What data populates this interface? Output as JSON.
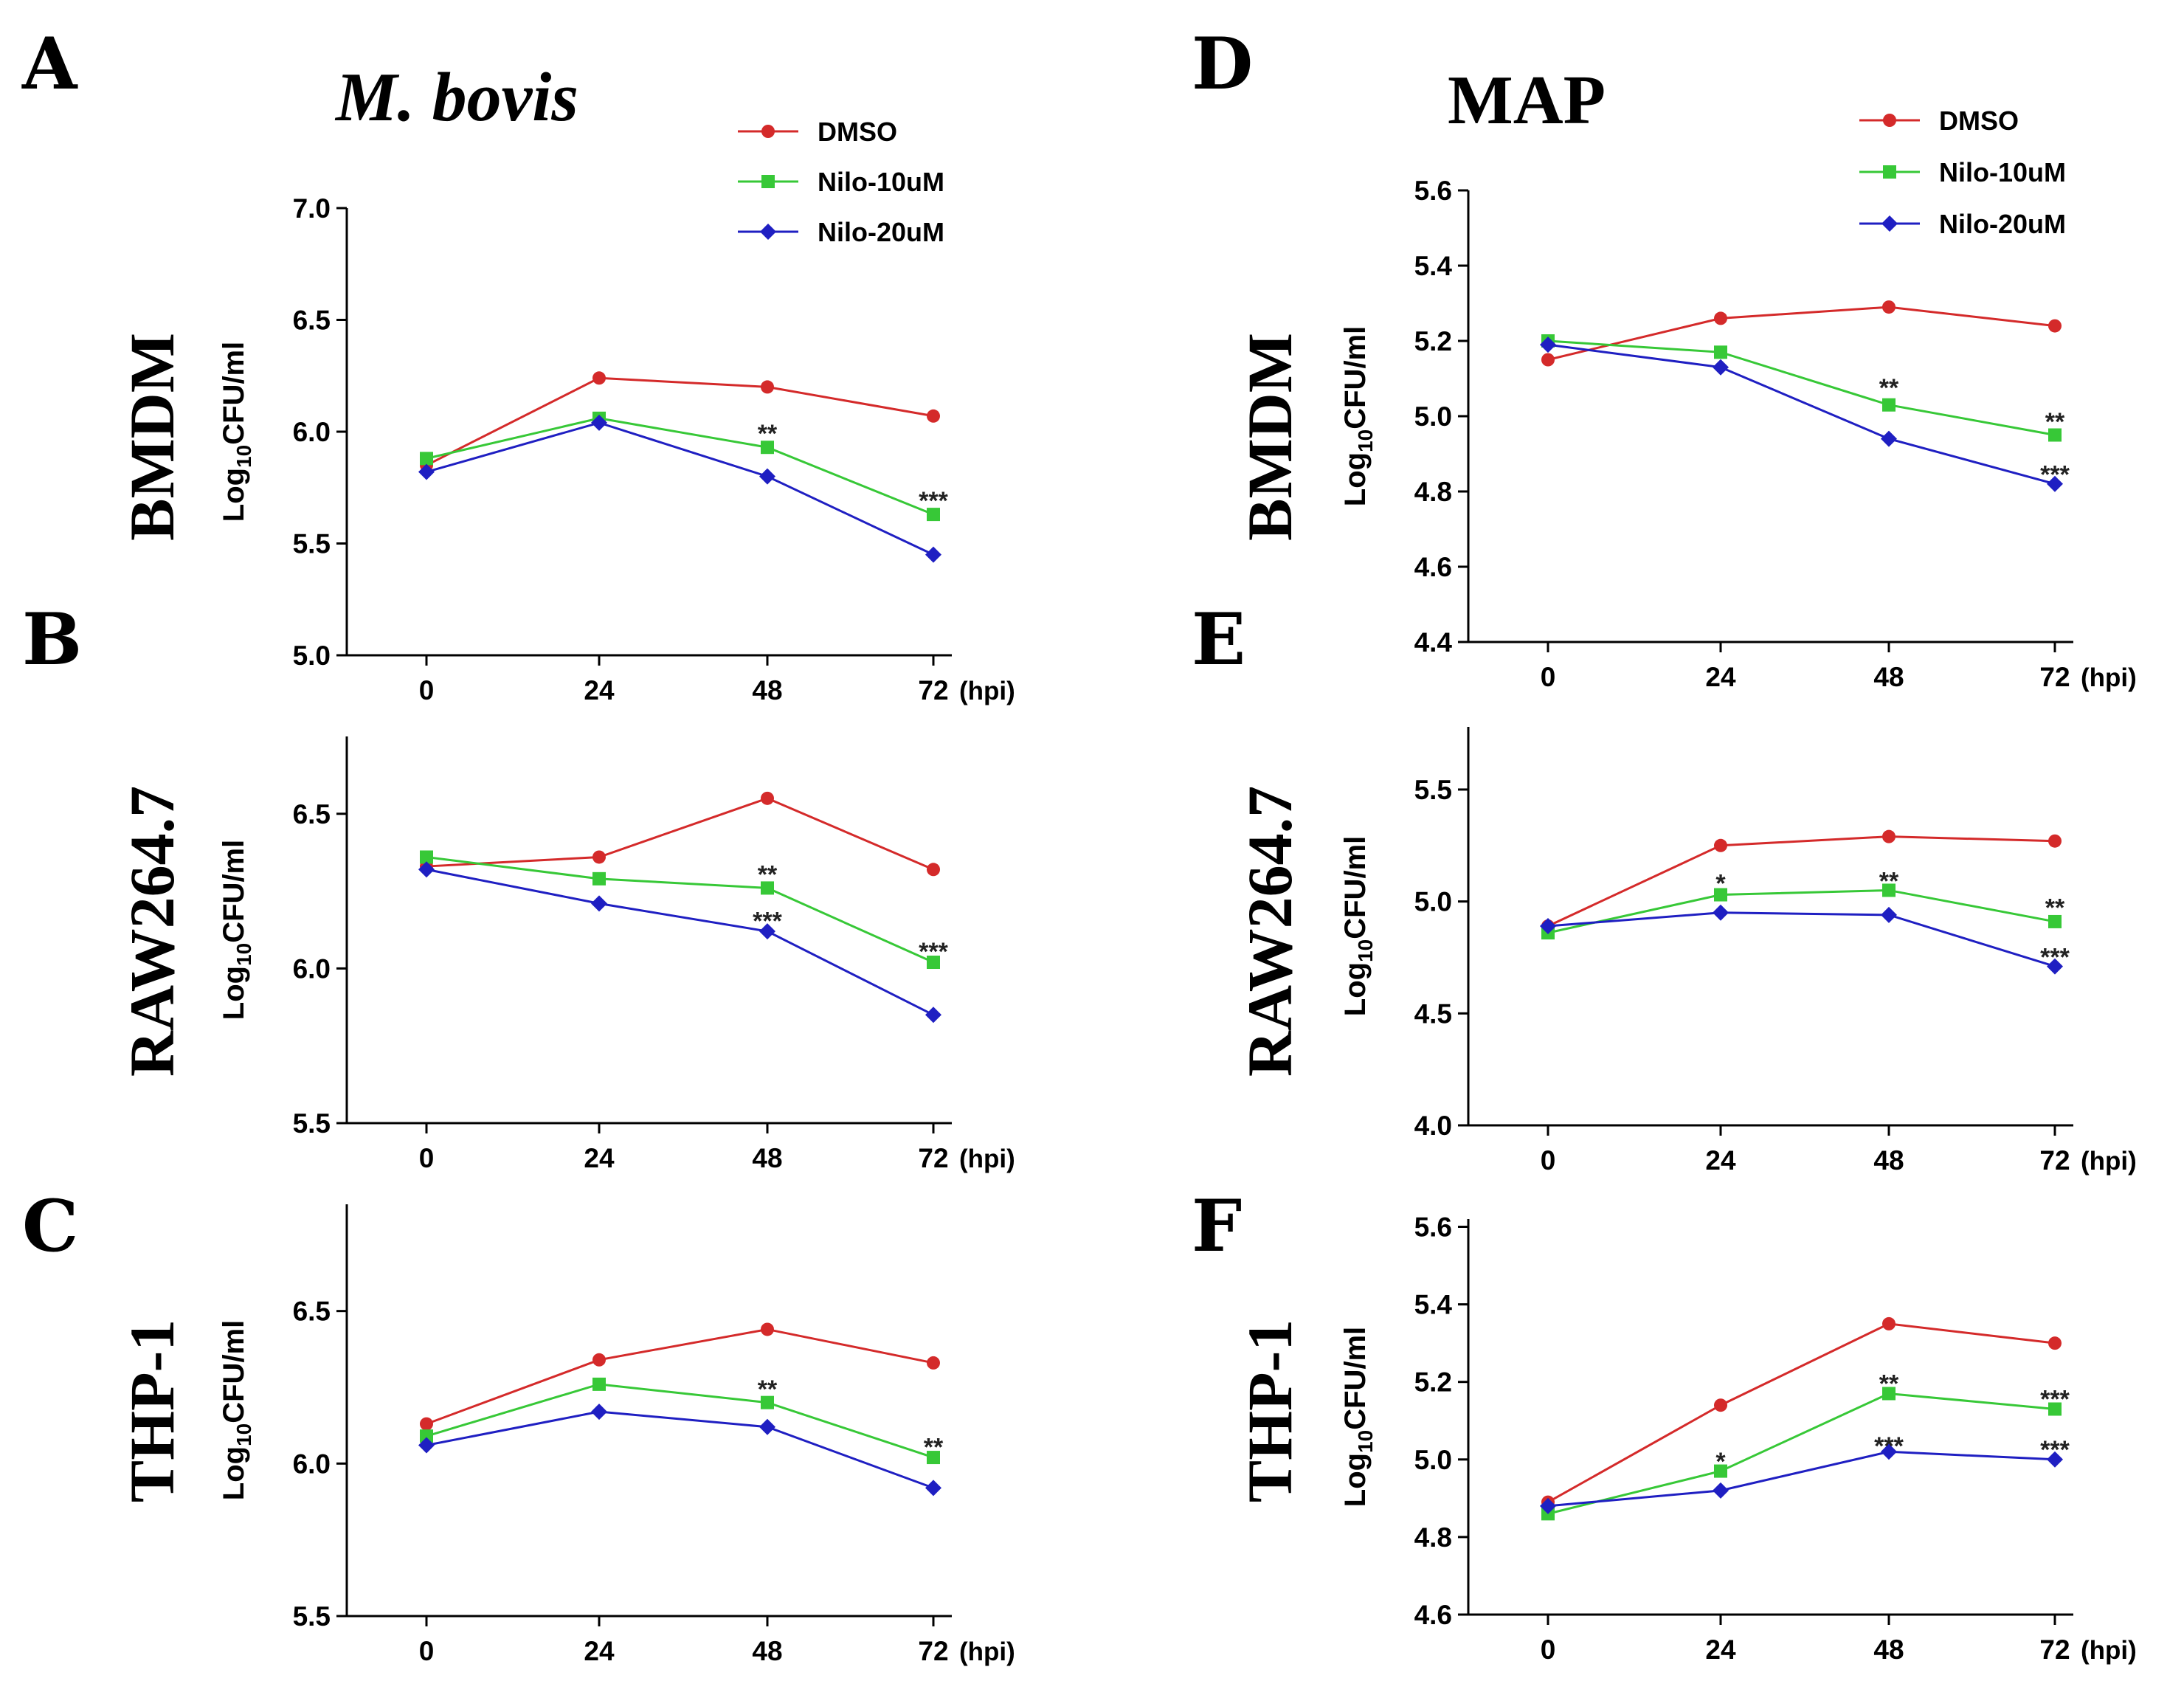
{
  "colors": {
    "DMSO": "#d42a2a",
    "Nilo-10uM": "#37c837",
    "Nilo-20uM": "#1f1fc2"
  },
  "headers": {
    "left": "M. bovis",
    "right": "MAP"
  },
  "legend": [
    {
      "name": "DMSO",
      "marker": "circle"
    },
    {
      "name": "Nilo-10uM",
      "marker": "square"
    },
    {
      "name": "Nilo-20uM",
      "marker": "diamond"
    }
  ],
  "chart_data": [
    {
      "panel": "A",
      "cell": "BMDM",
      "organism": "M. bovis",
      "type": "line",
      "xlabel": "(hpi)",
      "ylabel_main": "Log",
      "ylabel_sub": "10",
      "ylabel_tail": "CFU/ml",
      "x": [
        "0",
        "24",
        "48",
        "72"
      ],
      "ylim": [
        5.0,
        7.0
      ],
      "yticks": [
        "5.0",
        "5.5",
        "6.0",
        "6.5",
        "7.0"
      ],
      "series": [
        {
          "name": "DMSO",
          "values": [
            5.85,
            6.24,
            6.2,
            6.07
          ]
        },
        {
          "name": "Nilo-10uM",
          "values": [
            5.88,
            6.06,
            5.93,
            5.63
          ]
        },
        {
          "name": "Nilo-20uM",
          "values": [
            5.82,
            6.04,
            5.8,
            5.45
          ]
        }
      ],
      "annotations": [
        {
          "x": "48",
          "y": 6.0,
          "text": "**"
        },
        {
          "x": "72",
          "y": 5.7,
          "text": "***"
        }
      ]
    },
    {
      "panel": "B",
      "cell": "RAW264.7",
      "organism": "M. bovis",
      "type": "line",
      "xlabel": "(hpi)",
      "ylabel_main": "Log",
      "ylabel_sub": "10",
      "ylabel_tail": "CFU/ml",
      "x": [
        "0",
        "24",
        "48",
        "72"
      ],
      "ylim": [
        5.5,
        6.75
      ],
      "yticks": [
        "5.5",
        "6.0",
        "6.5"
      ],
      "series": [
        {
          "name": "DMSO",
          "values": [
            6.33,
            6.36,
            6.55,
            6.32
          ]
        },
        {
          "name": "Nilo-10uM",
          "values": [
            6.36,
            6.29,
            6.26,
            6.02
          ]
        },
        {
          "name": "Nilo-20uM",
          "values": [
            6.32,
            6.21,
            6.12,
            5.85
          ]
        }
      ],
      "annotations": [
        {
          "x": "48",
          "y": 6.31,
          "text": "**"
        },
        {
          "x": "48",
          "y": 6.16,
          "text": "***"
        },
        {
          "x": "72",
          "y": 6.06,
          "text": "***"
        }
      ]
    },
    {
      "panel": "C",
      "cell": "THP-1",
      "organism": "M. bovis",
      "type": "line",
      "xlabel": "(hpi)",
      "ylabel_main": "Log",
      "ylabel_sub": "10",
      "ylabel_tail": "CFU/ml",
      "x": [
        "0",
        "24",
        "48",
        "72"
      ],
      "ylim": [
        5.5,
        6.85
      ],
      "yticks": [
        "5.5",
        "6.0",
        "6.5"
      ],
      "series": [
        {
          "name": "DMSO",
          "values": [
            6.13,
            6.34,
            6.44,
            6.33
          ]
        },
        {
          "name": "Nilo-10uM",
          "values": [
            6.09,
            6.26,
            6.2,
            6.02
          ]
        },
        {
          "name": "Nilo-20uM",
          "values": [
            6.06,
            6.17,
            6.12,
            5.92
          ]
        }
      ],
      "annotations": [
        {
          "x": "48",
          "y": 6.25,
          "text": "**"
        },
        {
          "x": "72",
          "y": 6.06,
          "text": "**"
        }
      ]
    },
    {
      "panel": "D",
      "cell": "BMDM",
      "organism": "MAP",
      "type": "line",
      "xlabel": "(hpi)",
      "ylabel_main": "Log",
      "ylabel_sub": "10",
      "ylabel_tail": "CFU/ml",
      "x": [
        "0",
        "24",
        "48",
        "72"
      ],
      "ylim": [
        4.4,
        5.6
      ],
      "yticks": [
        "4.4",
        "4.6",
        "4.8",
        "5.0",
        "5.2",
        "5.4",
        "5.6"
      ],
      "series": [
        {
          "name": "DMSO",
          "values": [
            5.15,
            5.26,
            5.29,
            5.24
          ]
        },
        {
          "name": "Nilo-10uM",
          "values": [
            5.2,
            5.17,
            5.03,
            4.95
          ]
        },
        {
          "name": "Nilo-20uM",
          "values": [
            5.19,
            5.13,
            4.94,
            4.82
          ]
        }
      ],
      "annotations": [
        {
          "x": "48",
          "y": 5.08,
          "text": "**"
        },
        {
          "x": "72",
          "y": 4.99,
          "text": "**"
        },
        {
          "x": "72",
          "y": 4.85,
          "text": "***"
        }
      ]
    },
    {
      "panel": "E",
      "cell": "RAW264.7",
      "organism": "MAP",
      "type": "line",
      "xlabel": "(hpi)",
      "ylabel_main": "Log",
      "ylabel_sub": "10",
      "ylabel_tail": "CFU/ml",
      "x": [
        "0",
        "24",
        "48",
        "72"
      ],
      "ylim": [
        4.0,
        5.78
      ],
      "yticks": [
        "4.0",
        "4.5",
        "5.0",
        "5.5"
      ],
      "series": [
        {
          "name": "DMSO",
          "values": [
            4.89,
            5.25,
            5.29,
            5.27
          ]
        },
        {
          "name": "Nilo-10uM",
          "values": [
            4.86,
            5.03,
            5.05,
            4.91
          ]
        },
        {
          "name": "Nilo-20uM",
          "values": [
            4.89,
            4.95,
            4.94,
            4.71
          ]
        }
      ],
      "annotations": [
        {
          "x": "24",
          "y": 5.09,
          "text": "*"
        },
        {
          "x": "48",
          "y": 5.1,
          "text": "**"
        },
        {
          "x": "72",
          "y": 4.98,
          "text": "**"
        },
        {
          "x": "72",
          "y": 4.76,
          "text": "***"
        }
      ]
    },
    {
      "panel": "F",
      "cell": "THP-1",
      "organism": "MAP",
      "type": "line",
      "xlabel": "(hpi)",
      "ylabel_main": "Log",
      "ylabel_sub": "10",
      "ylabel_tail": "CFU/ml",
      "x": [
        "0",
        "24",
        "48",
        "72"
      ],
      "ylim": [
        4.6,
        5.62
      ],
      "yticks": [
        "4.6",
        "4.8",
        "5.0",
        "5.2",
        "5.4",
        "5.6"
      ],
      "series": [
        {
          "name": "DMSO",
          "values": [
            4.89,
            5.14,
            5.35,
            5.3
          ]
        },
        {
          "name": "Nilo-10uM",
          "values": [
            4.86,
            4.97,
            5.17,
            5.13
          ]
        },
        {
          "name": "Nilo-20uM",
          "values": [
            4.88,
            4.92,
            5.02,
            5.0
          ]
        }
      ],
      "annotations": [
        {
          "x": "24",
          "y": 5.0,
          "text": "*"
        },
        {
          "x": "48",
          "y": 5.2,
          "text": "**"
        },
        {
          "x": "48",
          "y": 5.04,
          "text": "***"
        },
        {
          "x": "72",
          "y": 5.16,
          "text": "***"
        },
        {
          "x": "72",
          "y": 5.03,
          "text": "***"
        }
      ]
    }
  ]
}
